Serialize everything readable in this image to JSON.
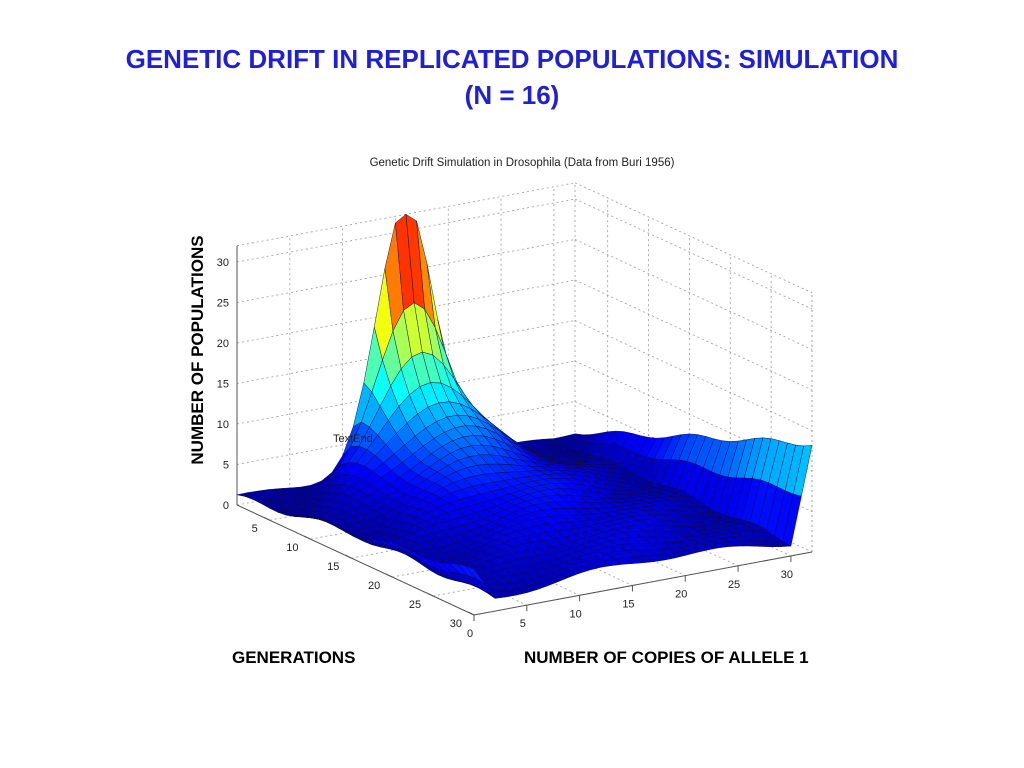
{
  "slide": {
    "title_line1": "GENETIC DRIFT IN REPLICATED POPULATIONS: SIMULATION",
    "title_line2": "(N = 16)"
  },
  "chart_data": {
    "type": "surface",
    "title": "Genetic Drift Simulation in Drosophila (Data from Buri 1956)",
    "zlabel": "NUMBER OF POPULATIONS",
    "xlabel": "GENERATIONS",
    "ylabel": "NUMBER OF COPIES OF ALLELE 1",
    "annotation": "TextEnd",
    "x_axis": {
      "label": "GENERATIONS",
      "range": [
        1,
        30
      ],
      "ticks": [
        5,
        10,
        15,
        20,
        25,
        30
      ]
    },
    "y_axis": {
      "label": "NUMBER OF COPIES OF ALLELE 1",
      "range": [
        0,
        32
      ],
      "ticks": [
        0,
        5,
        10,
        15,
        20,
        25,
        30
      ]
    },
    "z_axis": {
      "label": "NUMBER OF POPULATIONS",
      "range": [
        0,
        32
      ],
      "ticks": [
        0,
        5,
        10,
        15,
        20,
        25,
        30
      ]
    },
    "grid": true,
    "colormap": "jet",
    "surface_summary": {
      "peak": {
        "generation": 1,
        "copies": 16,
        "populations": 32
      },
      "ridge_at_copies_16_gen_1_to_5": [
        32,
        18,
        12,
        9,
        7
      ],
      "fixation_edge_copies_32_gen_30": 12,
      "loss_edge_copies_0_gen_30": 4
    }
  }
}
